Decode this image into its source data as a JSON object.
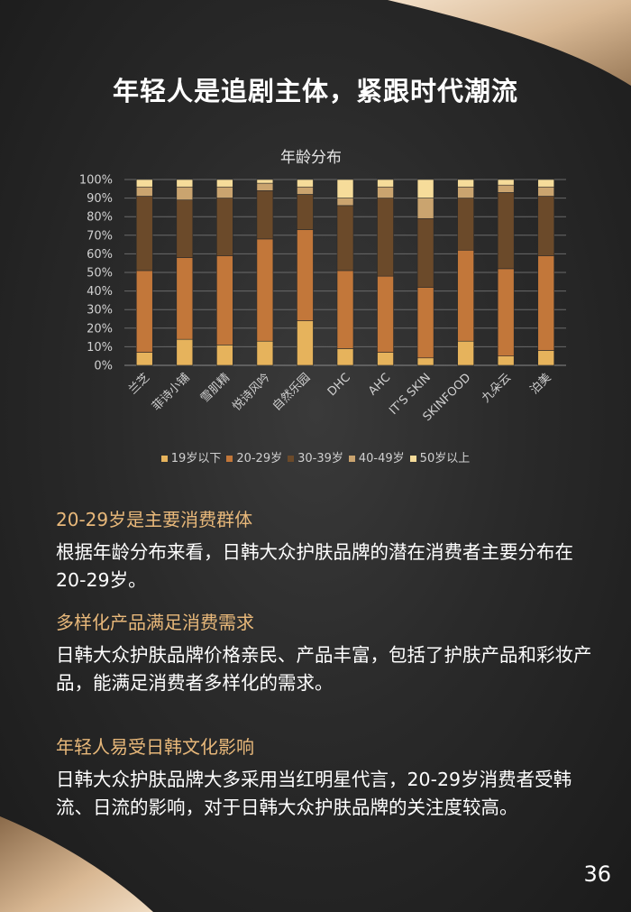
{
  "page": {
    "title": "年轻人是追剧主体，紧跟时代潮流",
    "page_number": "36"
  },
  "chart_data": {
    "type": "bar",
    "stacked": true,
    "normalized": true,
    "title": "年龄分布",
    "categories": [
      "兰芝",
      "菲诗小铺",
      "雪肌精",
      "悦诗风吟",
      "自然乐园",
      "DHC",
      "AHC",
      "IT'S SKIN",
      "SKINFOOD",
      "九朵云",
      "泊美"
    ],
    "series": [
      {
        "name": "19岁以下",
        "color": "#e6b35c",
        "values": [
          7,
          14,
          11,
          13,
          24,
          9,
          7,
          4,
          13,
          5,
          8
        ]
      },
      {
        "name": "20-29岁",
        "color": "#c2773a",
        "values": [
          44,
          44,
          48,
          55,
          49,
          42,
          41,
          38,
          49,
          47,
          51
        ]
      },
      {
        "name": "30-39岁",
        "color": "#6b4a2a",
        "values": [
          40,
          31,
          31,
          26,
          19,
          35,
          42,
          37,
          28,
          41,
          32
        ]
      },
      {
        "name": "40-49岁",
        "color": "#caa46f",
        "values": [
          5,
          7,
          6,
          4,
          4,
          4,
          6,
          11,
          6,
          4,
          5
        ]
      },
      {
        "name": "50岁以上",
        "color": "#f6dc9a",
        "values": [
          4,
          4,
          4,
          2,
          4,
          10,
          4,
          10,
          4,
          3,
          4
        ]
      }
    ],
    "y_ticks": [
      "0%",
      "10%",
      "20%",
      "30%",
      "40%",
      "50%",
      "60%",
      "70%",
      "80%",
      "90%",
      "100%"
    ],
    "ylim": [
      0,
      100
    ],
    "grid": true,
    "legend_position": "bottom"
  },
  "sections": [
    {
      "heading": "20-29岁是主要消费群体",
      "body": "根据年龄分布来看，日韩大众护肤品牌的潜在消费者主要分布在20-29岁。"
    },
    {
      "heading": "多样化产品满足消费需求",
      "body": "日韩大众护肤品牌价格亲民、产品丰富，包括了护肤产品和彩妆产品，能满足消费者多样化的需求。"
    },
    {
      "heading": "年轻人易受日韩文化影响",
      "body": "日韩大众护肤品牌大多采用当红明星代言，20-29岁消费者受韩流、日流的影响，对于日韩大众护肤品牌的关注度较高。"
    }
  ]
}
